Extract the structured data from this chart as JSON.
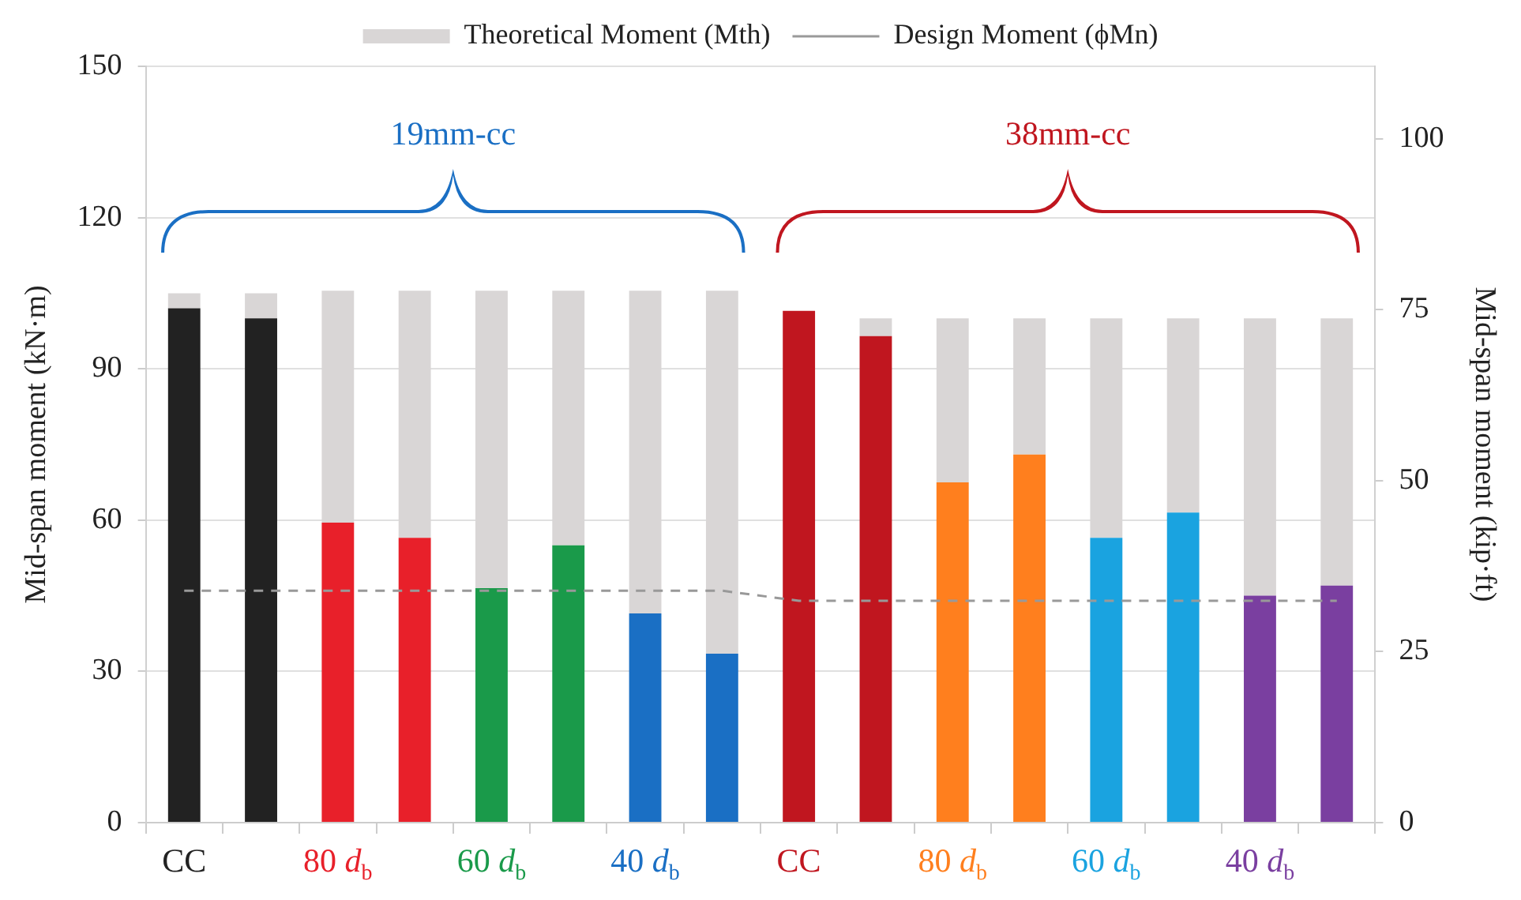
{
  "chart_data": {
    "type": "bar",
    "stacked": true,
    "categories": [
      "CC",
      null,
      "80 d$_{b}$",
      null,
      "60 d$_{b}$",
      null,
      "40 d$_{b}$",
      null,
      "CC",
      null,
      "80 d$_{b}$",
      null,
      "60 d$_{b}$",
      null,
      "40 d$_{b}$",
      null
    ],
    "series": [
      {
        "colors": [
          "#222222",
          "#222222",
          "#e8202a",
          "#e8202a",
          "#1a9a4a",
          "#1a9a4a",
          "#1a6fc4",
          "#1a6fc4",
          "#c0161f",
          "#c0161f",
          "#ff7f1e",
          "#ff7f1e",
          "#1aa3e0",
          "#1aa3e0",
          "#7a3fa0",
          "#7a3fa0"
        ],
        "values": [
          102,
          100,
          59.5,
          56.5,
          46.5,
          55,
          41.5,
          33.5,
          101.5,
          96.5,
          67.5,
          73,
          56.5,
          61.5,
          45,
          47
        ]
      },
      {
        "name": "Theoretical Moment (Mth)",
        "color": "#d9d6d6",
        "values": [
          3,
          5,
          46,
          49,
          59,
          50.5,
          64,
          72,
          null,
          3.5,
          32.5,
          27,
          43.5,
          38.5,
          55,
          53
        ]
      },
      {
        "name": "Design Moment (ϕMn)",
        "type": "line",
        "color": "#999999",
        "line_style": "dashed",
        "marker": "none",
        "values": [
          46,
          46,
          46,
          46,
          46,
          46,
          46,
          46,
          44,
          44,
          44,
          44,
          44,
          44,
          44,
          44
        ]
      }
    ],
    "ylabel": "Mid-span moment (kN·m)",
    "y2label": "Mid-span moment (kip·ft)",
    "ylim": [
      0,
      150
    ],
    "yticks": [
      0,
      30,
      60,
      90,
      120,
      150
    ],
    "y2lim": [
      0,
      110.6
    ],
    "y2ticks": [
      0,
      25,
      50,
      75,
      100
    ],
    "annotations": [
      "19mm-cc",
      "38mm-cc"
    ],
    "grid": "y",
    "legend": "top"
  }
}
